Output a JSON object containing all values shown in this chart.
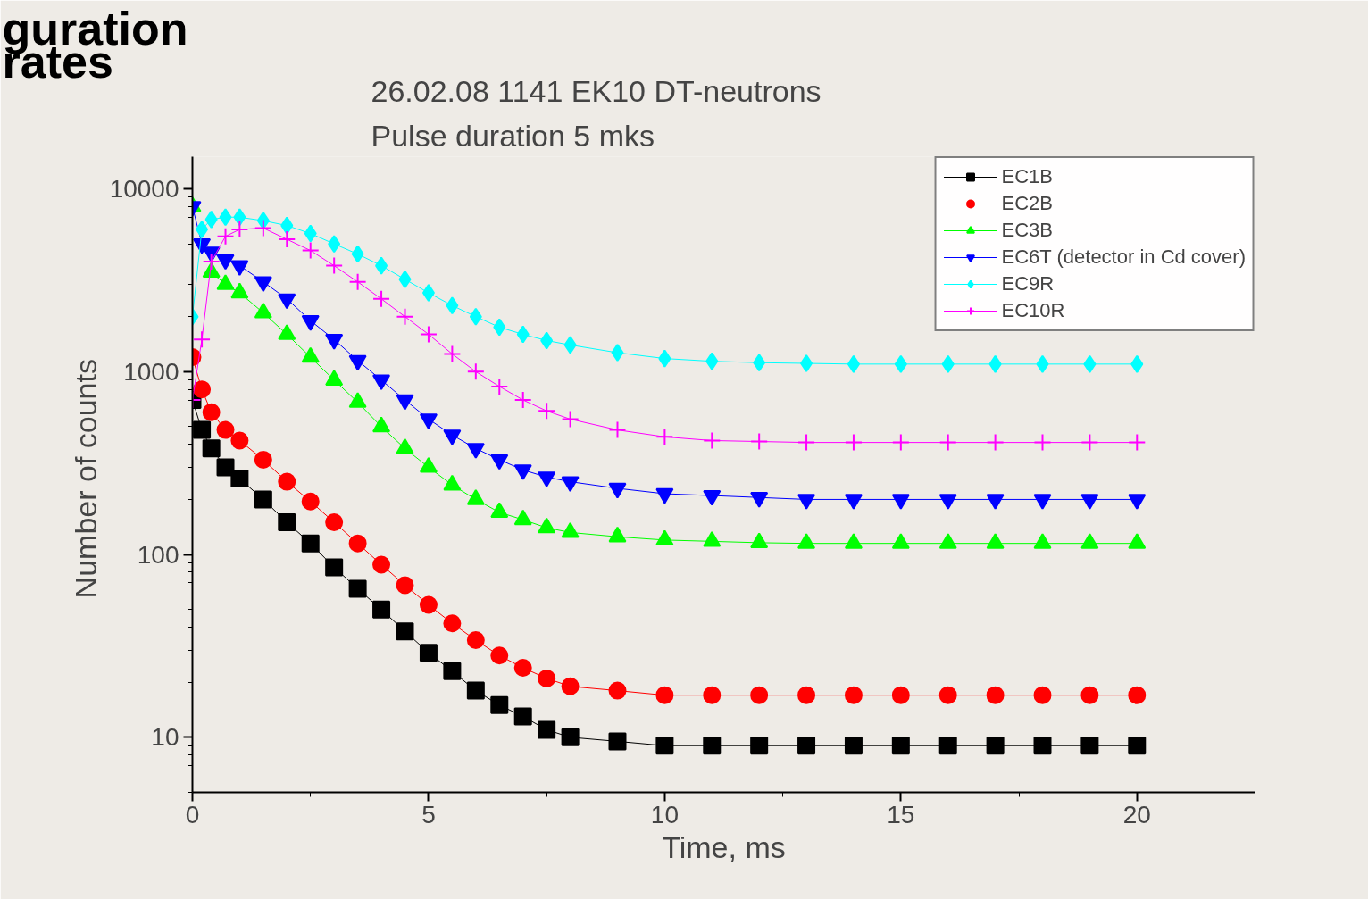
{
  "chart_data": {
    "type": "line",
    "title": "26.02.08 1141 EK10 DT-neutrons",
    "subtitle": "Pulse duration 5 mks",
    "xlabel": "Time, ms",
    "ylabel": "Number of  counts",
    "annotations": [
      "guration",
      "rates"
    ],
    "x": [
      0,
      0.2,
      0.4,
      0.7,
      1,
      1.5,
      2,
      2.5,
      3,
      3.5,
      4,
      4.5,
      5,
      5.5,
      6,
      6.5,
      7,
      7.5,
      8,
      9,
      10,
      11,
      12,
      13,
      14,
      15,
      16,
      17,
      18,
      19,
      20
    ],
    "series": [
      {
        "name": "EC1B",
        "color": "#000000",
        "marker": "square",
        "values": [
          700,
          480,
          380,
          300,
          260,
          200,
          150,
          115,
          85,
          65,
          50,
          38,
          29,
          23,
          18,
          15,
          13,
          11,
          10,
          9.5,
          9,
          9,
          9,
          9,
          9,
          9,
          9,
          9,
          9,
          9,
          9
        ]
      },
      {
        "name": "EC2B",
        "color": "#ff0000",
        "marker": "circle",
        "values": [
          1200,
          800,
          600,
          480,
          420,
          330,
          250,
          195,
          150,
          115,
          88,
          68,
          53,
          42,
          34,
          28,
          24,
          21,
          19,
          18,
          17,
          17,
          17,
          17,
          17,
          17,
          17,
          17,
          17,
          17,
          17
        ]
      },
      {
        "name": "EC3B",
        "color": "#00ff00",
        "marker": "triangle",
        "values": [
          8000,
          null,
          3500,
          3000,
          2700,
          2100,
          1600,
          1200,
          900,
          680,
          500,
          380,
          300,
          240,
          200,
          170,
          155,
          140,
          132,
          125,
          120,
          118,
          116,
          115,
          115,
          115,
          115,
          115,
          115,
          115,
          115
        ]
      },
      {
        "name": "EC6T (detector in Cd cover)",
        "color": "#0000ff",
        "marker": "triangle_down",
        "values": [
          8000,
          5000,
          4500,
          4100,
          3800,
          3100,
          2500,
          1900,
          1500,
          1150,
          900,
          700,
          550,
          450,
          380,
          330,
          290,
          265,
          250,
          230,
          215,
          210,
          205,
          200,
          200,
          200,
          200,
          200,
          200,
          200,
          200
        ]
      },
      {
        "name": "EC9R",
        "color": "#00ffff",
        "marker": "diamond",
        "values": [
          2000,
          6000,
          6800,
          7000,
          7000,
          6700,
          6300,
          5700,
          5000,
          4400,
          3800,
          3200,
          2700,
          2300,
          2000,
          1750,
          1600,
          1480,
          1400,
          1270,
          1180,
          1140,
          1120,
          1110,
          1100,
          1100,
          1100,
          1100,
          1100,
          1100,
          1100
        ]
      },
      {
        "name": "EC10R",
        "color": "#ff00ff",
        "marker": "cross",
        "values": [
          700,
          1500,
          4000,
          5500,
          6000,
          6100,
          5300,
          4600,
          3800,
          3100,
          2500,
          2000,
          1600,
          1250,
          1000,
          830,
          700,
          610,
          550,
          480,
          440,
          420,
          415,
          410,
          410,
          410,
          410,
          410,
          410,
          410,
          410
        ]
      }
    ],
    "xlim": [
      0,
      22.5
    ],
    "xticks": [
      0,
      5,
      10,
      15,
      20
    ],
    "ylim": [
      5,
      15000
    ],
    "yticks": [
      10,
      100,
      1000,
      10000
    ],
    "log": "y",
    "grid": false,
    "legend": "top right",
    "line_style": "solid"
  }
}
